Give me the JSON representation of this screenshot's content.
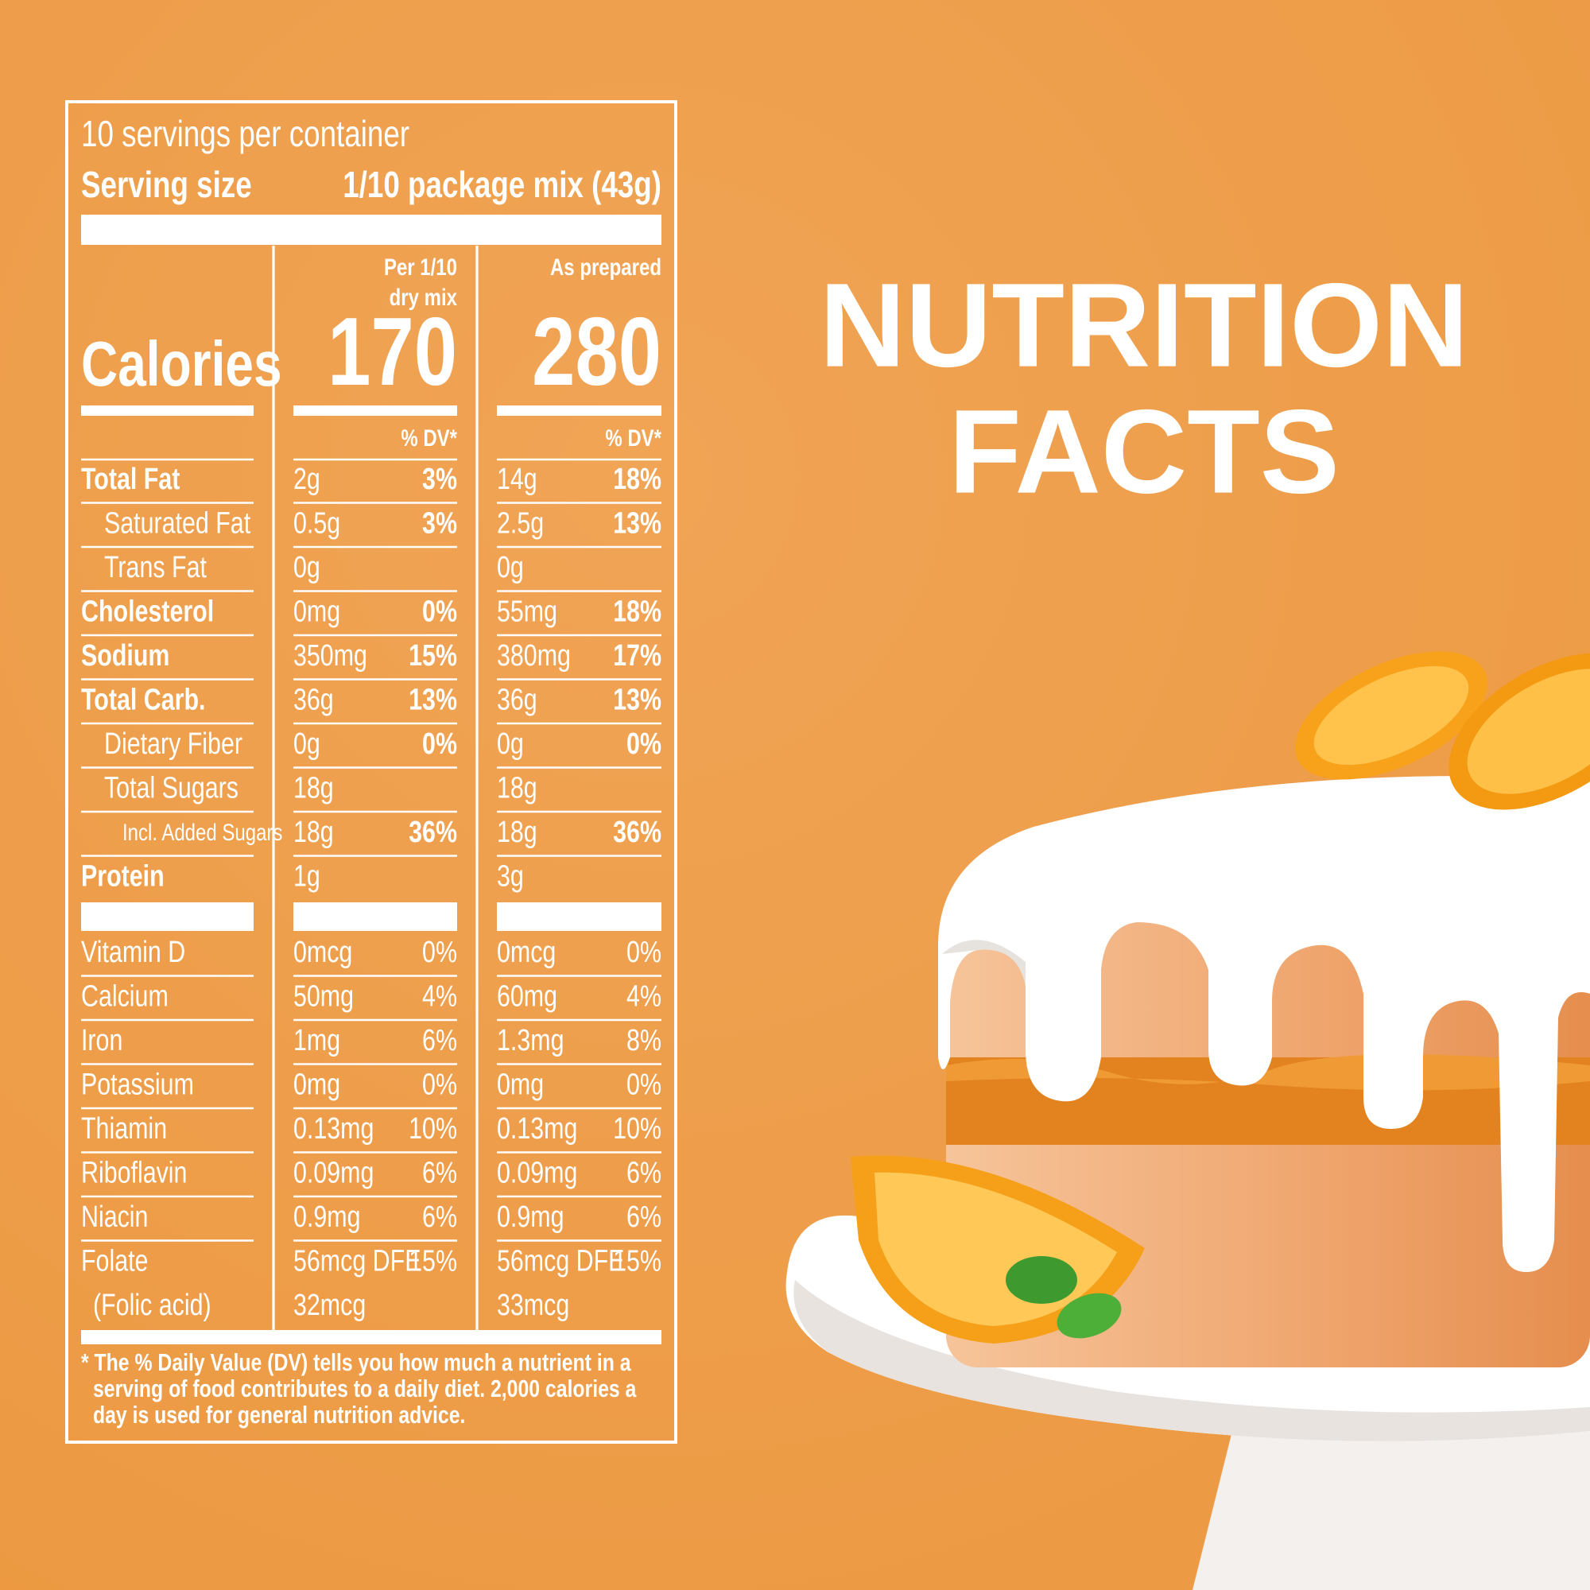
{
  "heading": {
    "line1": "NUTRITION",
    "line2": "FACTS"
  },
  "label": {
    "servings": "10 servings per container",
    "serving_size_label": "Serving size",
    "serving_size_value": "1/10 package mix (43g)",
    "calories_label": "Calories",
    "columns": [
      {
        "header": [
          "Per 1/10",
          "dry mix"
        ],
        "calories": 170,
        "dv_header": "% DV*"
      },
      {
        "header": [
          "As prepared"
        ],
        "calories": 280,
        "dv_header": "% DV*"
      }
    ],
    "nutrients": [
      {
        "name": "Total Fat",
        "bold": true,
        "indent": 0,
        "values": [
          [
            "2g",
            "3%"
          ],
          [
            "14g",
            "18%"
          ]
        ]
      },
      {
        "name": "Saturated Fat",
        "bold": false,
        "indent": 1,
        "values": [
          [
            "0.5g",
            "3%"
          ],
          [
            "2.5g",
            "13%"
          ]
        ]
      },
      {
        "name": "Trans Fat",
        "bold": false,
        "indent": 1,
        "values": [
          [
            "0g"
          ],
          [
            "0g"
          ]
        ]
      },
      {
        "name": "Cholesterol",
        "bold": true,
        "indent": 0,
        "values": [
          [
            "0mg",
            "0%"
          ],
          [
            "55mg",
            "18%"
          ]
        ]
      },
      {
        "name": "Sodium",
        "bold": true,
        "indent": 0,
        "values": [
          [
            "350mg",
            "15%"
          ],
          [
            "380mg",
            "17%"
          ]
        ]
      },
      {
        "name": "Total Carb.",
        "bold": true,
        "indent": 0,
        "values": [
          [
            "36g",
            "13%"
          ],
          [
            "36g",
            "13%"
          ]
        ]
      },
      {
        "name": "Dietary Fiber",
        "bold": false,
        "indent": 1,
        "values": [
          [
            "0g",
            "0%"
          ],
          [
            "0g",
            "0%"
          ]
        ]
      },
      {
        "name": "Total Sugars",
        "bold": false,
        "indent": 1,
        "values": [
          [
            "18g"
          ],
          [
            "18g"
          ]
        ]
      },
      {
        "name": "Incl. Added Sugars",
        "bold": false,
        "indent": 2,
        "values": [
          [
            "18g",
            "36%"
          ],
          [
            "18g",
            "36%"
          ]
        ]
      },
      {
        "name": "Protein",
        "bold": true,
        "indent": 0,
        "values": [
          [
            "1g"
          ],
          [
            "3g"
          ]
        ]
      }
    ],
    "vitamins": [
      {
        "name": "Vitamin D",
        "values": [
          [
            "0mcg",
            "0%"
          ],
          [
            "0mcg",
            "0%"
          ]
        ]
      },
      {
        "name": "Calcium",
        "values": [
          [
            "50mg",
            "4%"
          ],
          [
            "60mg",
            "4%"
          ]
        ]
      },
      {
        "name": "Iron",
        "values": [
          [
            "1mg",
            "6%"
          ],
          [
            "1.3mg",
            "8%"
          ]
        ]
      },
      {
        "name": "Potassium",
        "values": [
          [
            "0mg",
            "0%"
          ],
          [
            "0mg",
            "0%"
          ]
        ]
      },
      {
        "name": "Thiamin",
        "values": [
          [
            "0.13mg",
            "10%"
          ],
          [
            "0.13mg",
            "10%"
          ]
        ]
      },
      {
        "name": "Riboflavin",
        "values": [
          [
            "0.09mg",
            "6%"
          ],
          [
            "0.09mg",
            "6%"
          ]
        ]
      },
      {
        "name": "Niacin",
        "values": [
          [
            "0.9mg",
            "6%"
          ],
          [
            "0.9mg",
            "6%"
          ]
        ]
      },
      {
        "name": "Folate",
        "values": [
          [
            "56mcg DFE",
            "15%"
          ],
          [
            "56mcg DFE",
            "15%"
          ]
        ],
        "sub": {
          "name": "(Folic acid)",
          "values": [
            [
              "32mcg"
            ],
            [
              "33mcg"
            ]
          ]
        }
      }
    ],
    "footnote": [
      "* The % Daily Value (DV) tells you how much a nutrient in a",
      "serving of food contributes to a daily diet. 2,000 calories a",
      "day is used for general nutrition advice."
    ]
  }
}
